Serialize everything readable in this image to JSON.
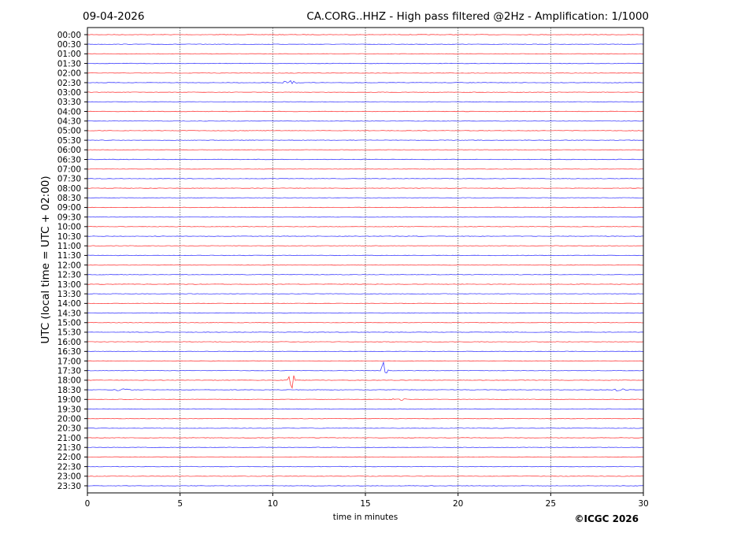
{
  "header": {
    "date": "09-04-2026",
    "title": "CA.CORG..HHZ - High pass filtered @2Hz - Amplification: 1/1000"
  },
  "footer": {
    "copyright": "©ICGC 2026"
  },
  "chart_data": {
    "type": "line",
    "title": "CA.CORG..HHZ - High pass filtered @2Hz - Amplification: 1/1000",
    "xlabel": "time in minutes",
    "ylabel": "UTC (local time = UTC + 02:00)",
    "xlim": [
      0,
      30
    ],
    "xticks": [
      "0",
      "5",
      "10",
      "15",
      "20",
      "25",
      "30"
    ],
    "grid": "vertical dotted at every 5 minutes",
    "colors": [
      "#ff0000",
      "#0000ff"
    ],
    "rows": [
      "00:00",
      "00:30",
      "01:00",
      "01:30",
      "02:00",
      "02:30",
      "03:00",
      "03:30",
      "04:00",
      "04:30",
      "05:00",
      "05:30",
      "06:00",
      "06:30",
      "07:00",
      "07:30",
      "08:00",
      "08:30",
      "09:00",
      "09:30",
      "10:00",
      "10:30",
      "11:00",
      "11:30",
      "12:00",
      "12:30",
      "13:00",
      "13:30",
      "14:00",
      "14:30",
      "15:00",
      "15:30",
      "16:00",
      "16:30",
      "17:00",
      "17:30",
      "18:00",
      "18:30",
      "19:00",
      "19:30",
      "20:00",
      "20:30",
      "21:00",
      "21:30",
      "22:00",
      "22:30",
      "23:00",
      "23:30"
    ],
    "events": [
      {
        "row": "02:30",
        "minute": 10.9,
        "amplitude": 0.3
      },
      {
        "row": "17:30",
        "minute": 16.0,
        "amplitude": 0.9
      },
      {
        "row": "18:00",
        "minute": 11.0,
        "amplitude": 1.0
      },
      {
        "row": "18:30",
        "minute": 1.9,
        "amplitude": 0.15
      },
      {
        "row": "18:30",
        "minute": 28.8,
        "amplitude": 0.15
      },
      {
        "row": "19:00",
        "minute": 16.8,
        "amplitude": 0.15
      }
    ]
  }
}
